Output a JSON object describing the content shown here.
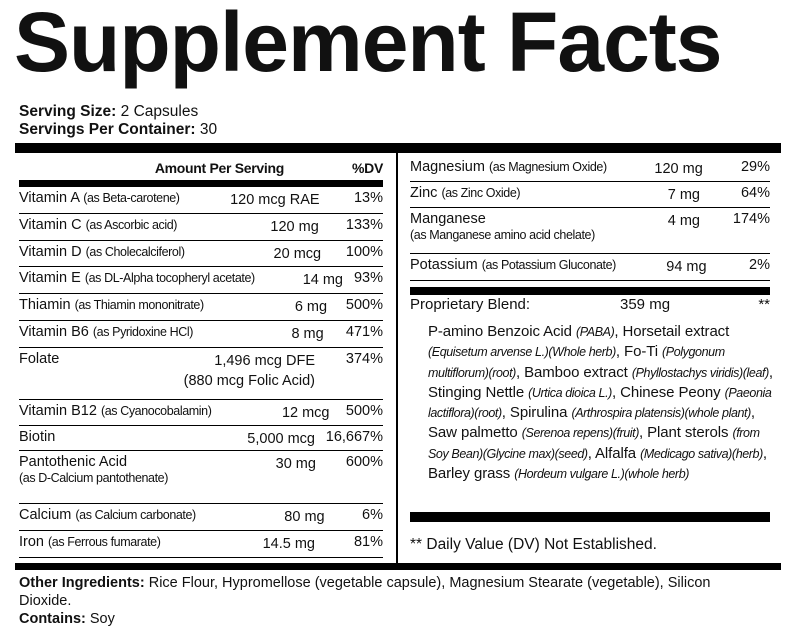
{
  "title": "Supplement Facts",
  "serving": {
    "size_label": "Serving Size:",
    "size_value": " 2 Capsules",
    "per_label": "Servings Per Container:",
    "per_value": " 30"
  },
  "header": {
    "amount": "Amount Per Serving",
    "dv": "%DV"
  },
  "left_rows": [
    {
      "name": "Vitamin A",
      "source": "(as Beta-carotene)",
      "amount": "120 mcg RAE",
      "dv": "13%"
    },
    {
      "name": "Vitamin C",
      "source": "(as Ascorbic acid)",
      "amount": "120 mg",
      "dv": "133%"
    },
    {
      "name": "Vitamin D",
      "source": "(as Cholecalciferol)",
      "amount": "20 mcg",
      "dv": "100%"
    },
    {
      "name": "Vitamin E",
      "source": "(as DL-Alpha tocopheryl acetate)",
      "amount": "14 mg",
      "dv": "93%"
    },
    {
      "name": "Thiamin",
      "source": "(as Thiamin mononitrate)",
      "amount": "6 mg",
      "dv": "500%"
    },
    {
      "name": "Vitamin B6",
      "source": "(as Pyridoxine HCl)",
      "amount": "8 mg",
      "dv": "471%"
    },
    {
      "name": "Folate",
      "source": "",
      "amount": "1,496 mcg DFE",
      "amount2": "(880 mcg Folic Acid)",
      "dv": "374%"
    },
    {
      "name": "Vitamin B12",
      "source": "(as Cyanocobalamin)",
      "amount": "12 mcg",
      "dv": "500%"
    },
    {
      "name": "Biotin",
      "source": "",
      "amount": "5,000 mcg",
      "dv": "16,667%"
    },
    {
      "name": "Pantothenic Acid",
      "source2": "(as  D-Calcium pantothenate)",
      "amount": "30 mg",
      "dv": "600%"
    },
    {
      "name": "Calcium",
      "source": "(as Calcium carbonate)",
      "amount": "80 mg",
      "dv": "6%"
    },
    {
      "name": "Iron",
      "source": "(as Ferrous fumarate)",
      "amount": "14.5 mg",
      "dv": "81%"
    }
  ],
  "right_rows": [
    {
      "name": "Magnesium",
      "source": "(as Magnesium Oxide)",
      "amount": "120 mg",
      "dv": "29%"
    },
    {
      "name": "Zinc",
      "source": "(as Zinc Oxide)",
      "amount": "7 mg",
      "dv": "64%"
    },
    {
      "name": "Manganese",
      "source2": "(as Manganese amino acid chelate)",
      "amount": "4 mg",
      "dv": "174%"
    },
    {
      "name": "Potassium",
      "source": "(as Potassium Gluconate)",
      "amount": "94 mg",
      "dv": "2%"
    }
  ],
  "blend": {
    "name": "Proprietary Blend:",
    "amount": "359 mg",
    "dv": "**",
    "segments": [
      {
        "t": "P-amino Benzoic Acid ",
        "i": false
      },
      {
        "t": "(PABA)",
        "i": true
      },
      {
        "t": ", Horsetail extract ",
        "i": false
      },
      {
        "t": "(Equisetum arvense L.)(Whole herb)",
        "i": true
      },
      {
        "t": ", Fo-Ti ",
        "i": false
      },
      {
        "t": "(Polygonum multiflorum)(root)",
        "i": true
      },
      {
        "t": ", Bamboo extract ",
        "i": false
      },
      {
        "t": "(Phyllostachys viridis)(leaf)",
        "i": true
      },
      {
        "t": ", Stinging Nettle  ",
        "i": false
      },
      {
        "t": "(Urtica dioica L.)",
        "i": true
      },
      {
        "t": ", Chinese Peony ",
        "i": false
      },
      {
        "t": "(Paeonia lactiflora)(root)",
        "i": true
      },
      {
        "t": ", Spirulina ",
        "i": false
      },
      {
        "t": "(Arthrospira platensis)(whole plant)",
        "i": true
      },
      {
        "t": ", Saw palmetto ",
        "i": false
      },
      {
        "t": "(Serenoa repens)(fruit)",
        "i": true
      },
      {
        "t": ", Plant sterols ",
        "i": false
      },
      {
        "t": "(from Soy Bean)(Glycine max)(seed)",
        "i": true
      },
      {
        "t": ", Alfalfa ",
        "i": false
      },
      {
        "t": "(Medicago sativa)(herb)",
        "i": true
      },
      {
        "t": ", Barley grass ",
        "i": false
      },
      {
        "t": "(Hordeum vulgare L.)(whole herb)",
        "i": true
      }
    ]
  },
  "dv_note": "** Daily Value (DV) Not Established.",
  "other": {
    "label": "Other Ingredients:",
    "text": " Rice Flour, Hypromellose (vegetable capsule), Magnesium Stearate (vegetable), Silicon Dioxide."
  },
  "contains": {
    "label": "Contains:",
    "text": " Soy"
  }
}
